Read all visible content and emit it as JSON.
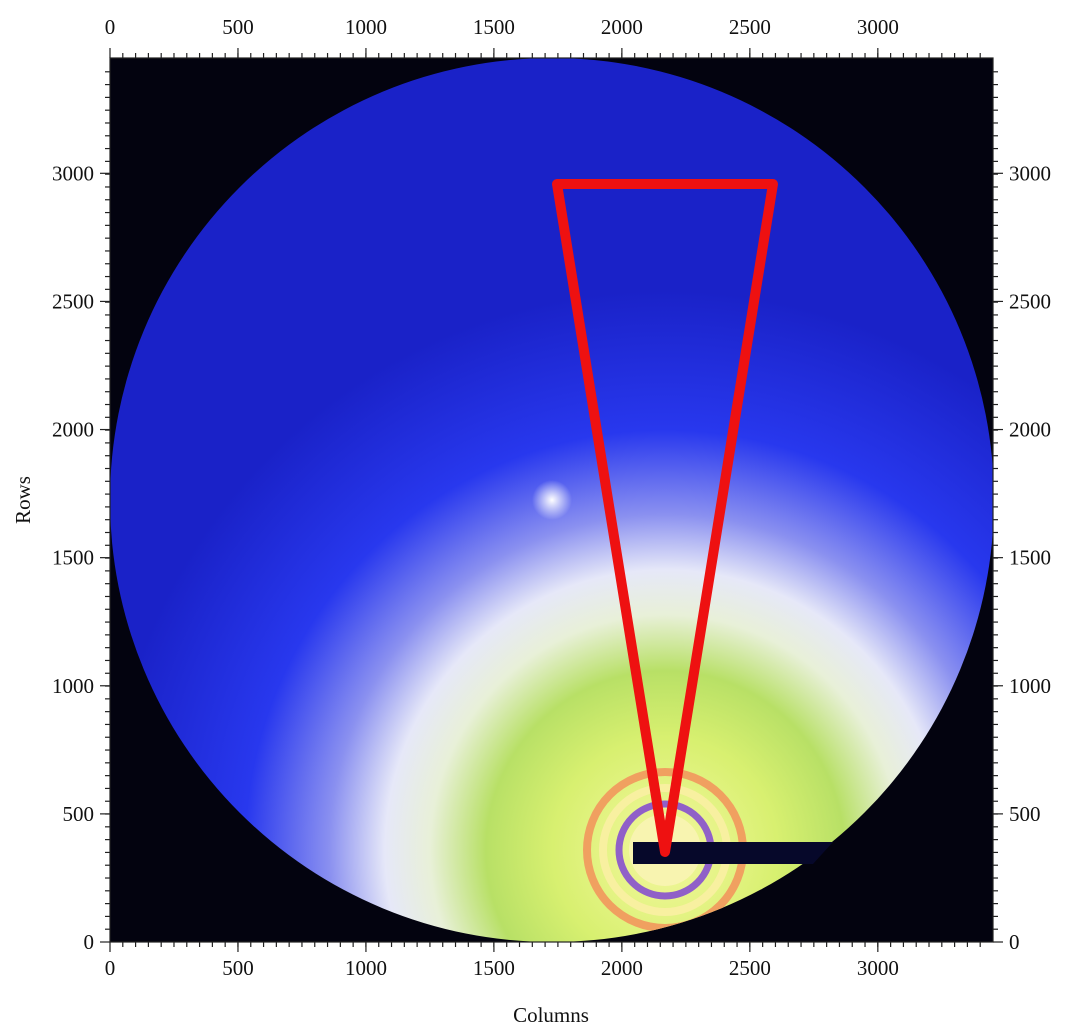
{
  "chart_data": {
    "type": "image",
    "xlabel": "Columns",
    "ylabel": "Rows",
    "xlim": [
      0,
      3450
    ],
    "ylim": [
      0,
      3450
    ],
    "xticks": [
      0,
      500,
      1000,
      1500,
      2000,
      2500,
      3000
    ],
    "yticks": [
      0,
      500,
      1000,
      1500,
      2000,
      2500,
      3000
    ]
  }
}
